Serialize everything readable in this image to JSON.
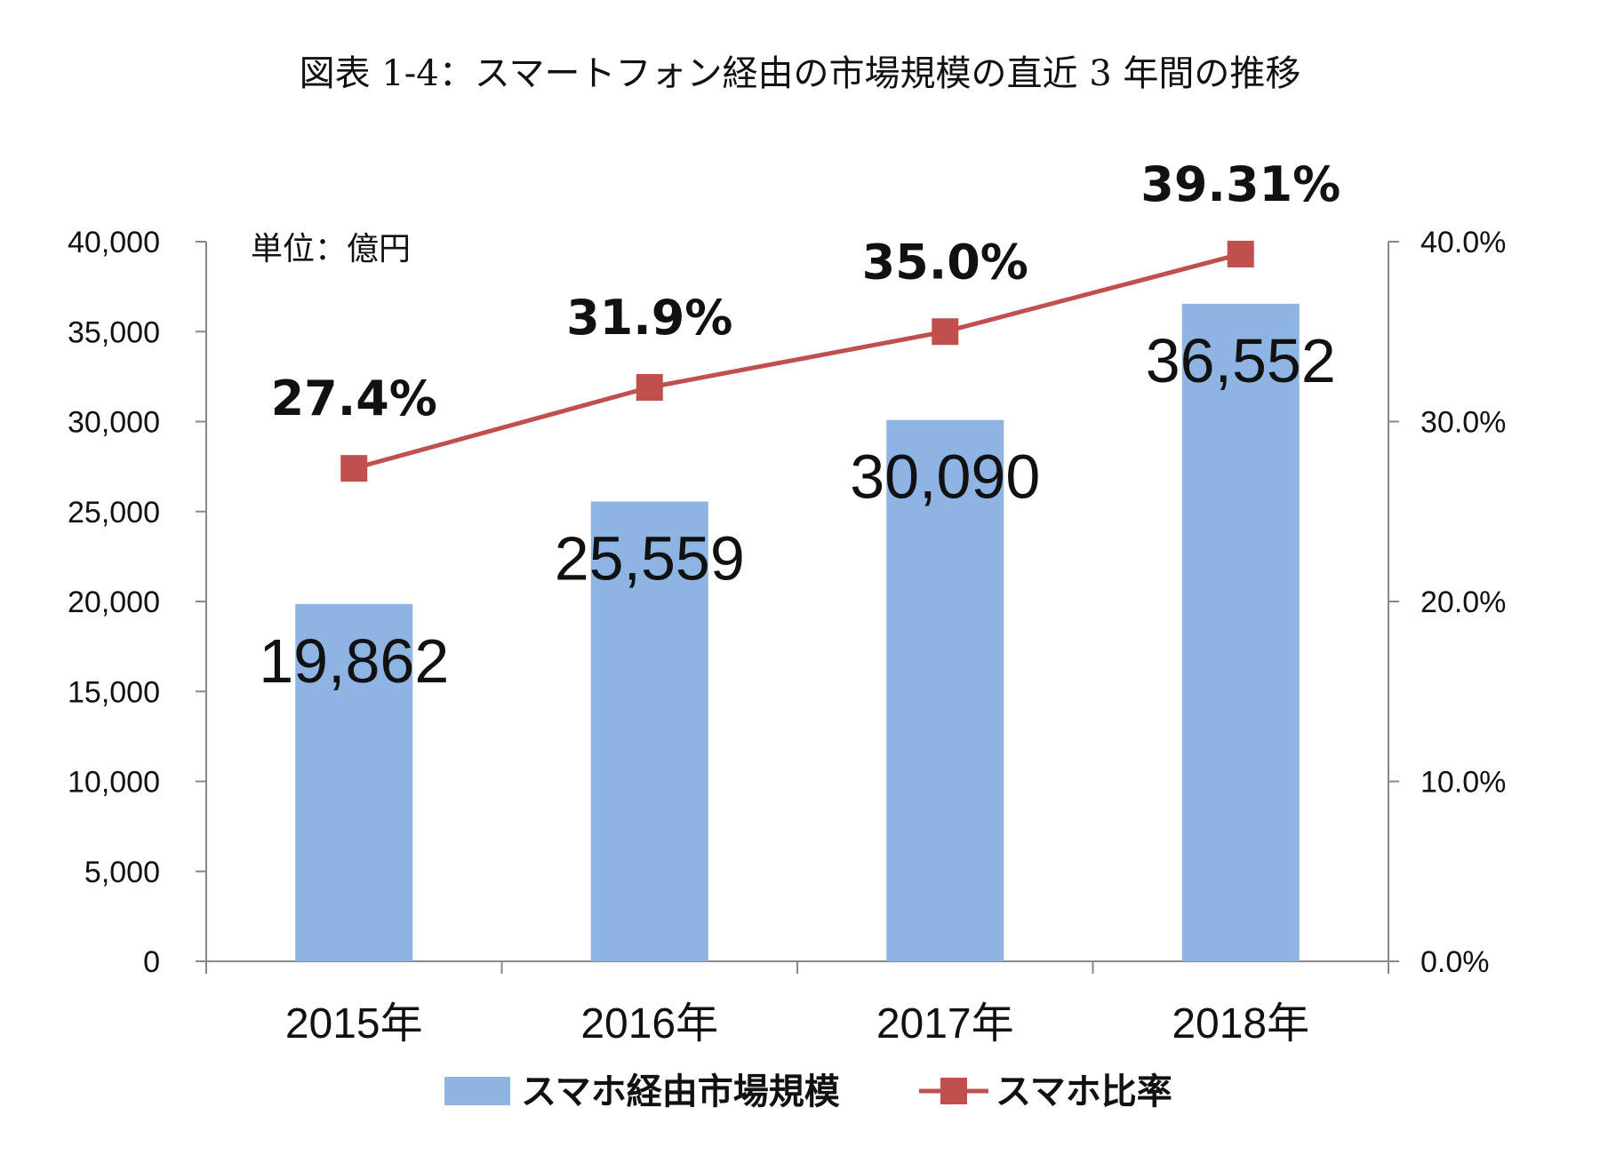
{
  "title": "図表 1-4：スマートフォン経由の市場規模の直近 3 年間の推移",
  "chart_data": {
    "type": "bar+line",
    "title": "図表 1-4：スマートフォン経由の市場規模の直近 3 年間の推移",
    "unit_label": "単位：億円",
    "categories": [
      "2015年",
      "2016年",
      "2017年",
      "2018年"
    ],
    "series": [
      {
        "name": "スマホ経由市場規模",
        "type": "bar",
        "axis": "left",
        "values": [
          19862,
          25559,
          30090,
          36552
        ],
        "labels": [
          "19,862",
          "25,559",
          "30,090",
          "36,552"
        ],
        "color": "#8EB4E3"
      },
      {
        "name": "スマホ比率",
        "type": "line",
        "axis": "right",
        "values": [
          27.4,
          31.9,
          35.0,
          39.31
        ],
        "labels": [
          "27.4%",
          "31.9%",
          "35.0%",
          "39.31%"
        ],
        "color": "#C0504D"
      }
    ],
    "y_left": {
      "lim": [
        0,
        40000
      ],
      "ticks": [
        0,
        5000,
        10000,
        15000,
        20000,
        25000,
        30000,
        35000,
        40000
      ],
      "tick_labels": [
        "0",
        "5,000",
        "10,000",
        "15,000",
        "20,000",
        "25,000",
        "30,000",
        "35,000",
        "40,000"
      ]
    },
    "y_right": {
      "lim": [
        0,
        40
      ],
      "ticks": [
        0,
        10,
        20,
        30,
        40
      ],
      "tick_labels": [
        "0.0%",
        "10.0%",
        "20.0%",
        "30.0%",
        "40.0%"
      ]
    },
    "grid": false,
    "legend_position": "bottom"
  }
}
